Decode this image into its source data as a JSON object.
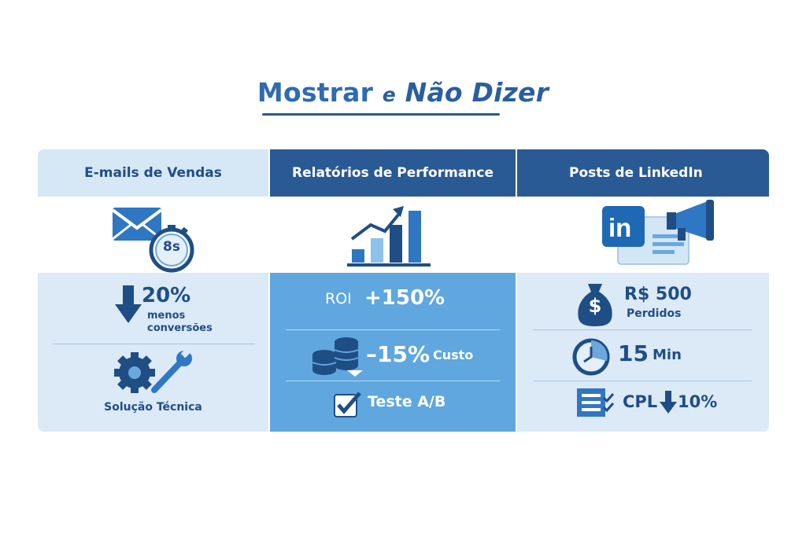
{
  "title": {
    "word1": "Mostrar",
    "word2": "e",
    "word3": "Não Dizer"
  },
  "columns": [
    {
      "header": "E-mails de Vendas",
      "icons": [
        "envelope-icon",
        "stopwatch-icon"
      ],
      "stopwatch_label": "8s",
      "stat_value": "20%",
      "stat_label_1": "menos",
      "stat_label_2": "conversões",
      "solution_label": "Solução Técnica"
    },
    {
      "header": "Relatórios de Performance",
      "icons": [
        "bar-chart-growth-icon"
      ],
      "roi_label": "ROI",
      "roi_value": "+150%",
      "cost_value": "–15%",
      "cost_label": "Custo",
      "test_label": "Teste A/B"
    },
    {
      "header": "Posts de LinkedIn",
      "icons": [
        "linkedin-icon",
        "megaphone-icon"
      ],
      "linkedin_logo": "in",
      "money_sign": "$",
      "money_value": "R$ 500",
      "money_label": "Perdidos",
      "time_value": "15",
      "time_unit": "Min",
      "cpl_label": "CPL",
      "cpl_value": "10%"
    }
  ],
  "colors": {
    "dark_blue": "#2a5a94",
    "mid_blue": "#5fa7de",
    "light_blue": "#dce9f6",
    "text_blue": "#1f4e85"
  }
}
